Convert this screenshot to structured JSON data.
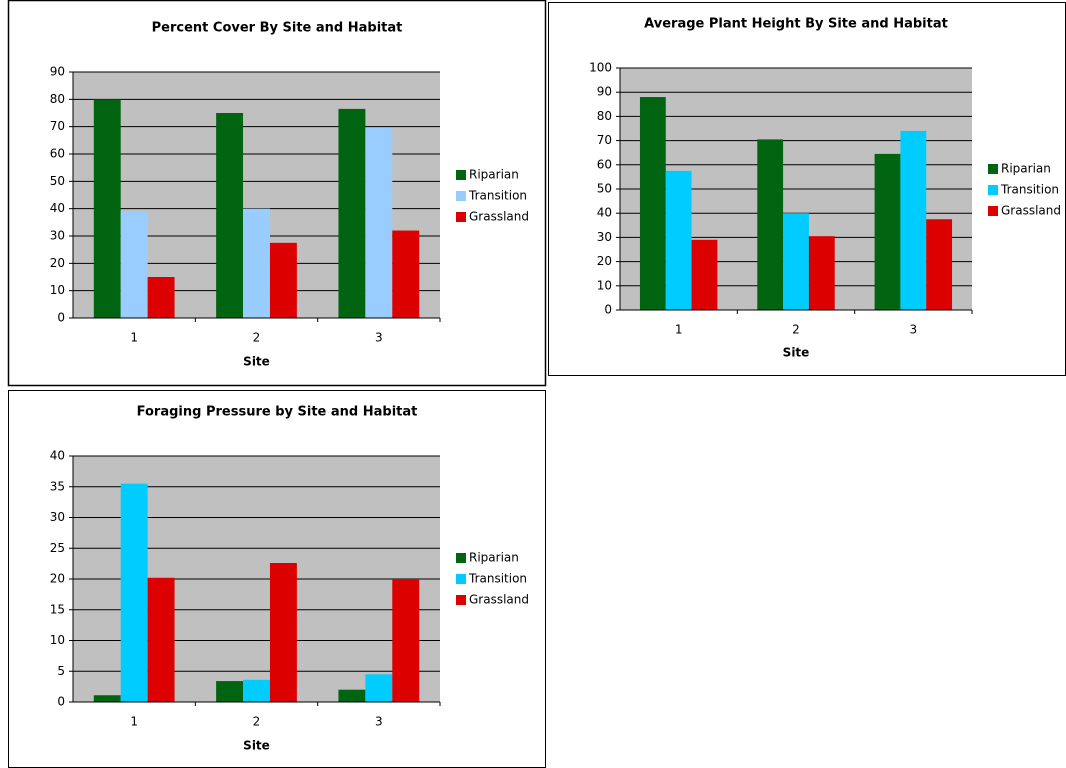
{
  "chart_data": [
    {
      "type": "bar",
      "title": "Percent Cover By Site and Habitat",
      "x_label": "Site",
      "categories": [
        "1",
        "2",
        "3"
      ],
      "series": [
        {
          "name": "Riparian",
          "color": "#006411",
          "values": [
            80,
            75,
            76.5
          ]
        },
        {
          "name": "Transition",
          "color": "#99ccff",
          "values": [
            39,
            40,
            69.5
          ]
        },
        {
          "name": "Grassland",
          "color": "#dd0000",
          "values": [
            15,
            27.5,
            32
          ]
        }
      ],
      "ylim": [
        0,
        90
      ],
      "yticks": [
        0,
        10,
        20,
        30,
        40,
        50,
        60,
        70,
        80,
        90
      ],
      "grid": true,
      "legend": "right"
    },
    {
      "type": "bar",
      "title": "Average Plant Height By Site and Habitat",
      "x_label": "Site",
      "categories": [
        "1",
        "2",
        "3"
      ],
      "series": [
        {
          "name": "Riparian",
          "color": "#006411",
          "values": [
            88,
            70.5,
            64.5
          ]
        },
        {
          "name": "Transition",
          "color": "#00ccff",
          "values": [
            57.5,
            40,
            74
          ]
        },
        {
          "name": "Grassland",
          "color": "#dd0000",
          "values": [
            29,
            30.5,
            37.5
          ]
        }
      ],
      "ylim": [
        0,
        100
      ],
      "yticks": [
        0,
        10,
        20,
        30,
        40,
        50,
        60,
        70,
        80,
        90,
        100
      ],
      "grid": true,
      "legend": "right"
    },
    {
      "type": "bar",
      "title": "Foraging Pressure by Site and Habitat",
      "x_label": "Site",
      "categories": [
        "1",
        "2",
        "3"
      ],
      "series": [
        {
          "name": "Riparian",
          "color": "#006411",
          "values": [
            1.1,
            3.4,
            2
          ]
        },
        {
          "name": "Transition",
          "color": "#00ccff",
          "values": [
            35.5,
            3.6,
            4.5
          ]
        },
        {
          "name": "Grassland",
          "color": "#dd0000",
          "values": [
            20.2,
            22.6,
            20
          ]
        }
      ],
      "ylim": [
        0,
        40
      ],
      "yticks": [
        0,
        5,
        10,
        15,
        20,
        25,
        30,
        35,
        40
      ],
      "grid": true,
      "legend": "right"
    }
  ]
}
